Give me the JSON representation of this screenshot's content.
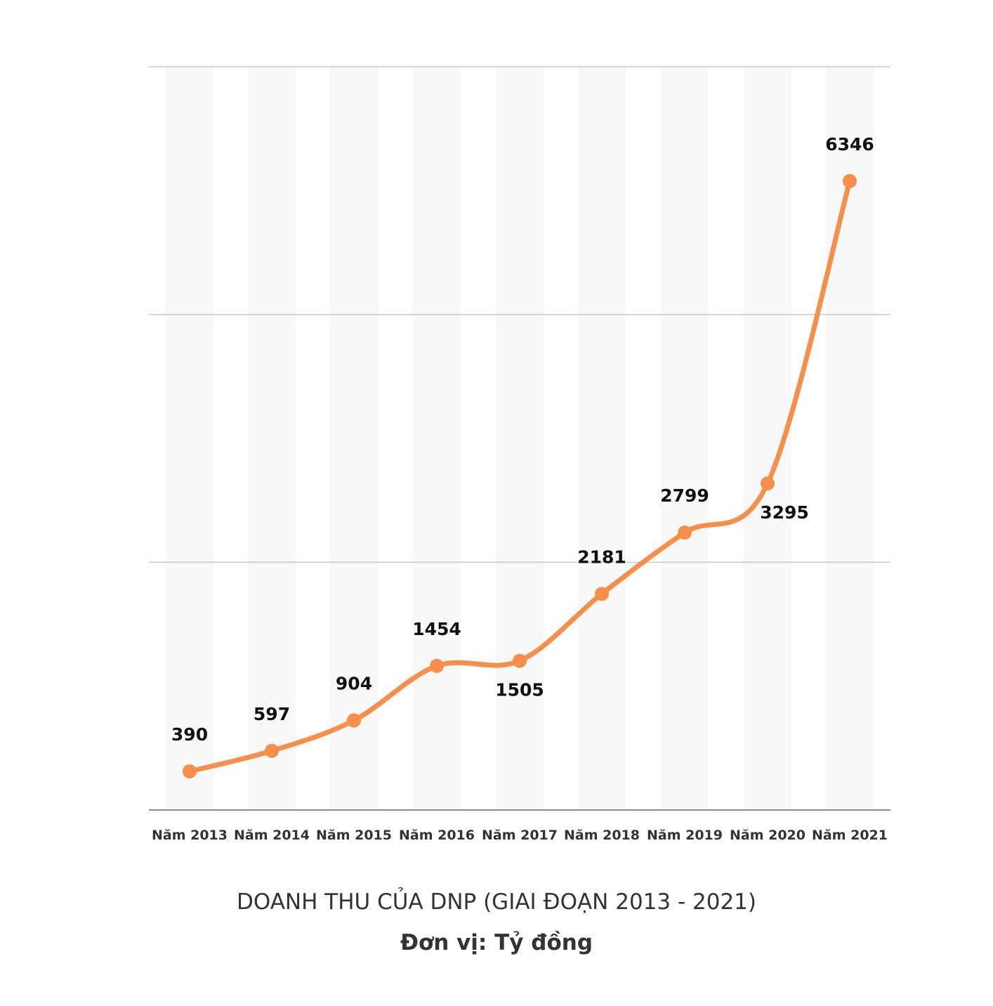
{
  "chart_data": {
    "type": "line",
    "categories": [
      "Năm 2013",
      "Năm 2014",
      "Năm 2015",
      "Năm 2016",
      "Năm 2017",
      "Năm 2018",
      "Năm 2019",
      "Năm 2020",
      "Năm 2021"
    ],
    "series": [
      {
        "values": [
          390,
          597,
          904,
          1454,
          1505,
          2181,
          2799,
          3295,
          6346
        ]
      }
    ],
    "data_labels": [
      "390",
      "597",
      "904",
      "1454",
      "1505",
      "2181",
      "2799",
      "3295",
      "6346"
    ],
    "data_label_position": [
      "above",
      "above",
      "above",
      "above",
      "below",
      "above",
      "above",
      "below",
      "above"
    ],
    "title": "DOANH THU CỦA  DNP (GIAI ĐOẠN 2013 - 2021)",
    "subtitle": "Đơn vị: Tỷ đồng",
    "ylim": [
      0,
      7500
    ],
    "grid_values": [
      2500,
      5000,
      7500
    ],
    "y_tick_labels_shown": false,
    "grid": true,
    "smooth": true,
    "colors": {
      "line": "#F78E4A",
      "marker": "#F78E4A",
      "grid": "#C8C8C8",
      "baseline": "#888888",
      "band": "#F8F8F8",
      "text": "#111111",
      "axis_text": "#333333"
    }
  }
}
